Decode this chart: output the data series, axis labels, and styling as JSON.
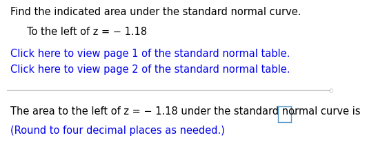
{
  "line1": "Find the indicated area under the standard normal curve.",
  "line2": "To the left of z = − 1.18",
  "link1": "Click here to view page 1 of the standard normal table.",
  "link2": "Click here to view page 2 of the standard normal table.",
  "line3": "The area to the left of z = − 1.18 under the standard normal curve is",
  "line4": "(Round to four decimal places as needed.)",
  "text_color": "#000000",
  "link_color": "#0000EE",
  "bg_color": "#ffffff",
  "divider_color": "#aaaaaa",
  "box_color": "#5599cc",
  "font_size_main": 10.5,
  "font_size_link": 10.5,
  "font_size_sub": 10.5
}
